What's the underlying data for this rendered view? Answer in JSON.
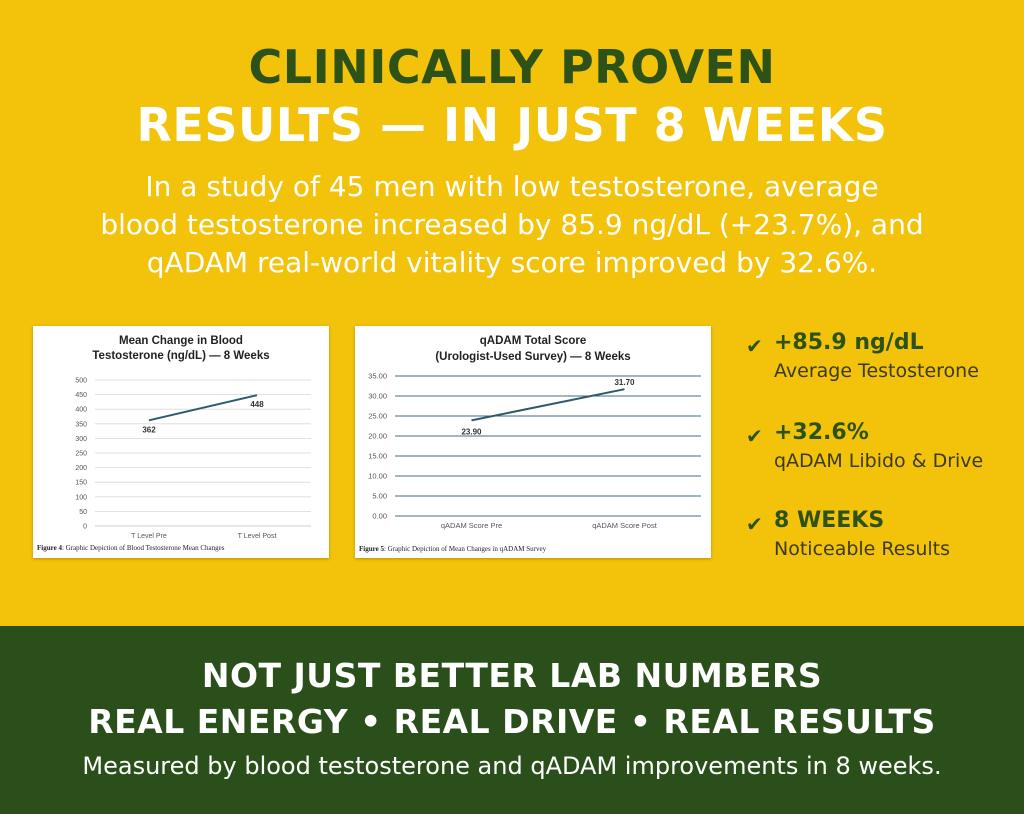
{
  "header": {
    "title_line1": "CLINICALLY PROVEN",
    "title_line2": "RESULTS — IN JUST 8 WEEKS",
    "subtitle_line1": "In a study of 45 men with low testosterone, average",
    "subtitle_line2": "blood testosterone increased by 85.9 ng/dL (+23.7%), and",
    "subtitle_line3": "qADAM real-world vitality score improved by 32.6%."
  },
  "colors": {
    "background": "#F3C20A",
    "dark_green": "#2B4F1A",
    "line": "#2F5A6B",
    "grid": "#3D6B86"
  },
  "chart_data": [
    {
      "type": "line",
      "title_line1": "Mean Change in Blood",
      "title_line2": "Testosterone (ng/dL) — 8 Weeks",
      "categories": [
        "T Level Pre",
        "T Level Post"
      ],
      "values": [
        362,
        448
      ],
      "data_labels": [
        "362",
        "448"
      ],
      "yticks": [
        "0",
        "50",
        "100",
        "150",
        "200",
        "250",
        "300",
        "350",
        "400",
        "450",
        "500"
      ],
      "ylim": [
        0,
        500
      ],
      "grid": true,
      "caption_bold": "Figure 4",
      "caption": ": Graphic Depiction of Blood Testosterone Mean Changes"
    },
    {
      "type": "line",
      "title_line1": "qADAM Total Score",
      "title_line2": "(Urologist-Used Survey) — 8 Weeks",
      "categories": [
        "qADAM Score Pre",
        "qADAM Score Post"
      ],
      "values": [
        23.9,
        31.7
      ],
      "data_labels": [
        "23.90",
        "31.70"
      ],
      "yticks": [
        "0.00",
        "5.00",
        "10.00",
        "15.00",
        "20.00",
        "25.00",
        "30.00",
        "35.00"
      ],
      "ylim": [
        0,
        35
      ],
      "grid": true,
      "caption_bold": "Figure 5",
      "caption": ": Graphic Depiction of Mean Changes in qADAM Survey"
    }
  ],
  "stats": [
    {
      "icon": "check-icon",
      "value": "+85.9 ng/dL",
      "label": "Average Testosterone"
    },
    {
      "icon": "check-icon",
      "value": "+32.6%",
      "label": "qADAM Libido & Drive"
    },
    {
      "icon": "check-icon",
      "value": "8 WEEKS",
      "label": "Noticeable Results"
    }
  ],
  "footer": {
    "line1": "NOT JUST BETTER LAB NUMBERS",
    "line2": "REAL ENERGY • REAL DRIVE • REAL RESULTS",
    "line3": "Measured by blood testosterone and qADAM improvements in 8 weeks."
  }
}
